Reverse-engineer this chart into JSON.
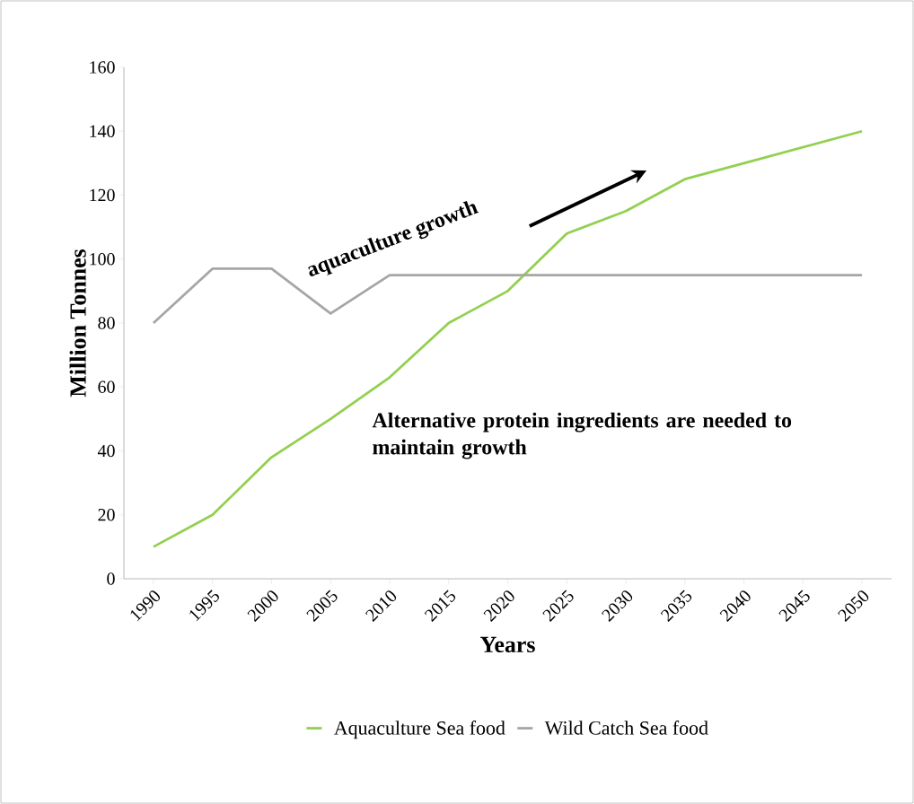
{
  "chart_data": {
    "type": "line",
    "xlabel": "Years",
    "ylabel": "Million Tonnes",
    "categories": [
      "1990",
      "1995",
      "2000",
      "2005",
      "2010",
      "2015",
      "2020",
      "2025",
      "2030",
      "2035",
      "2040",
      "2045",
      "2050"
    ],
    "series": [
      {
        "name": "Aquaculture Sea food",
        "color": "#92d050",
        "values": [
          10,
          20,
          38,
          50,
          63,
          80,
          90,
          108,
          115,
          125,
          130,
          135,
          140
        ]
      },
      {
        "name": "Wild Catch Sea food",
        "color": "#a6a6a6",
        "values": [
          80,
          97,
          97,
          83,
          95,
          95,
          95,
          95,
          95,
          95,
          95,
          95,
          95
        ]
      }
    ],
    "ylim": [
      0,
      160
    ],
    "yticks": [
      0,
      20,
      40,
      60,
      80,
      100,
      120,
      140,
      160
    ],
    "grid": false,
    "legend": "bottom",
    "marker": "none",
    "line_style": "solid",
    "annotations": [
      "aquaculture growth",
      "Alternative protein ingredients are needed to maintain growth"
    ]
  }
}
